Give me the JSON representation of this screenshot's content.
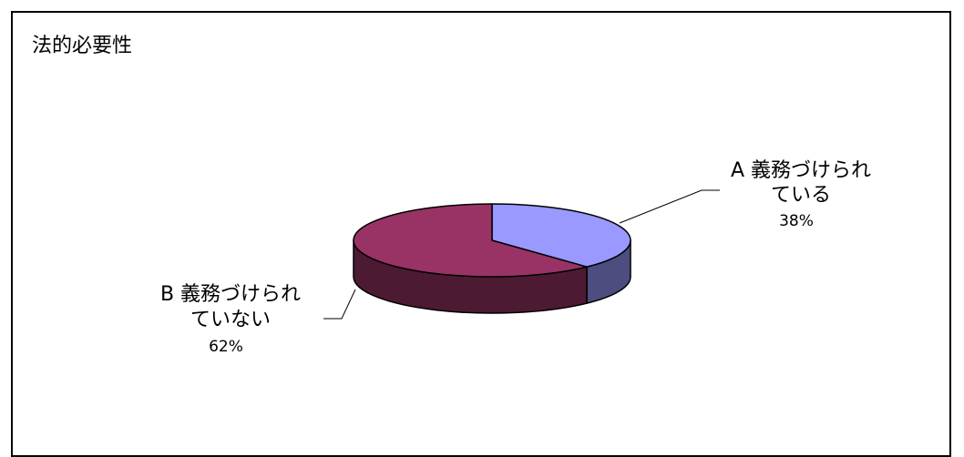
{
  "chart_data": {
    "type": "pie",
    "title": "法的必要性",
    "three_d": true,
    "legend": "none",
    "slices": [
      {
        "name_line1": "A 義務づけられ",
        "name_line2": "ている",
        "value": 38,
        "percent_label": "38%",
        "color": "#9999ff",
        "side_color": "#4d4d80"
      },
      {
        "name_line1": "B 義務づけられ",
        "name_line2": "ていない",
        "value": 62,
        "percent_label": "62%",
        "color": "#993366",
        "side_color": "#4d1a33"
      }
    ]
  }
}
